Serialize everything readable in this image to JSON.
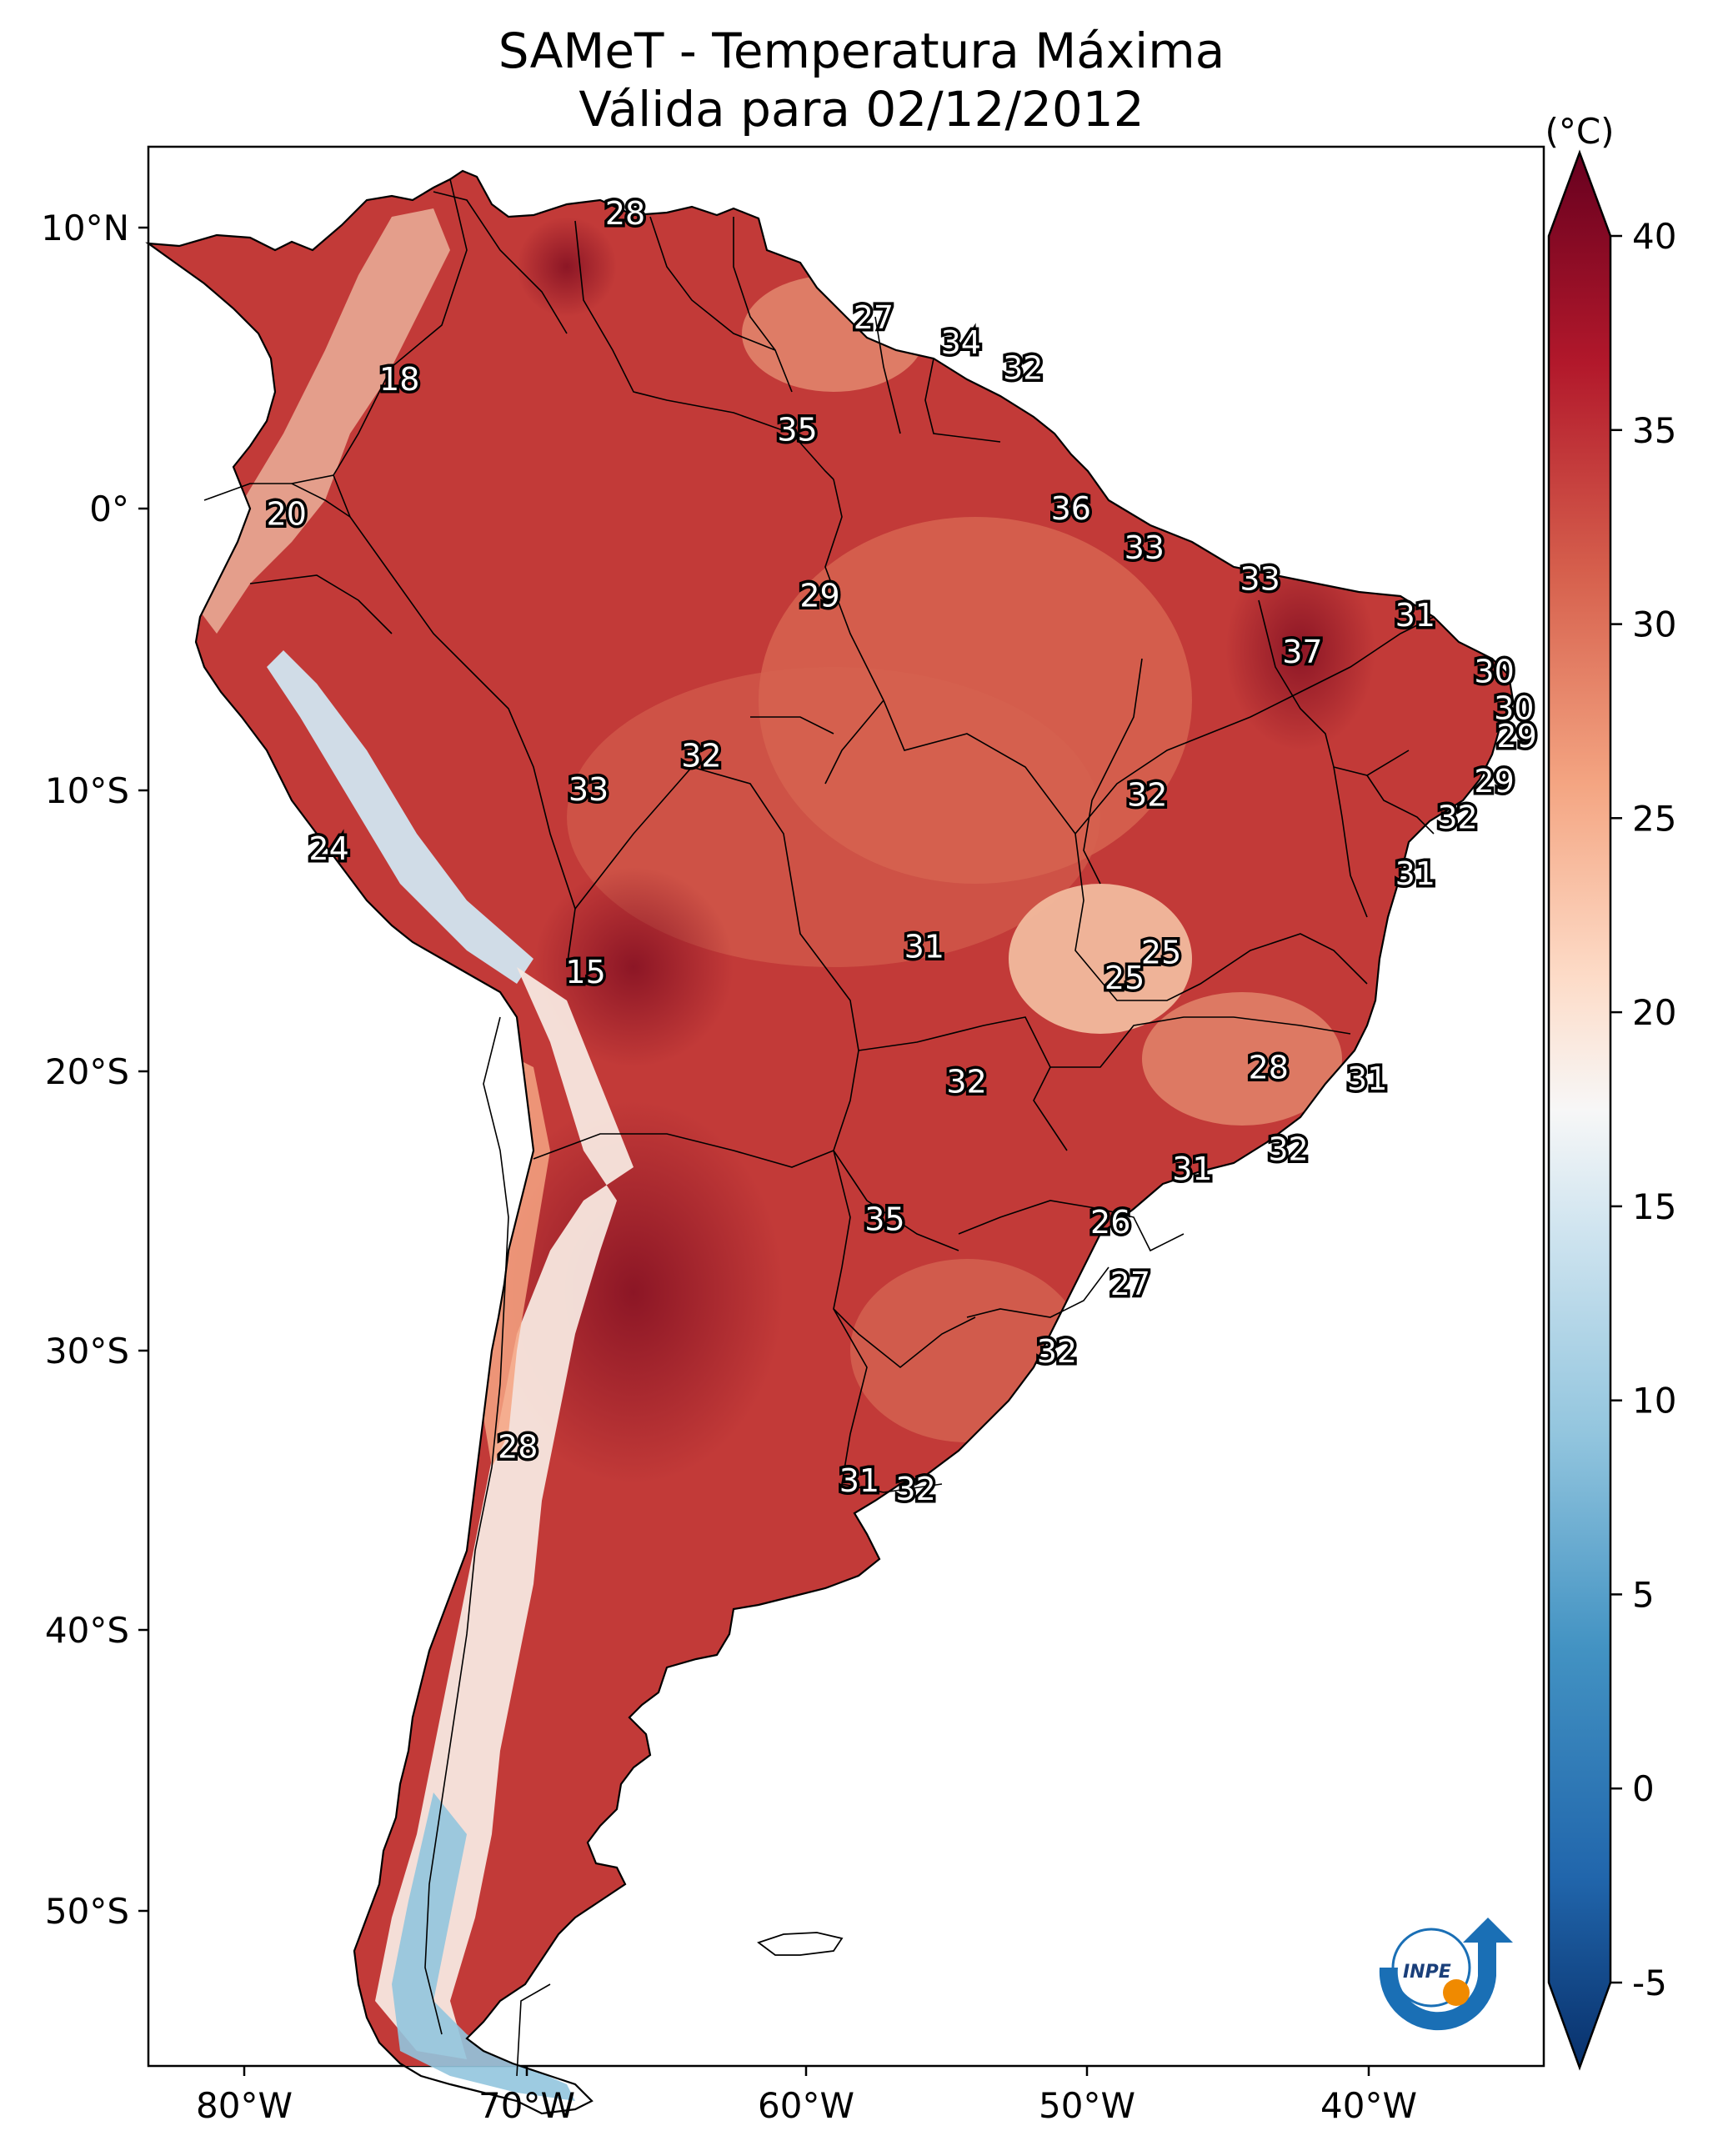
{
  "title": {
    "line1": "SAMeT - Temperatura Máxima",
    "line2": "Válida para 02/12/2012"
  },
  "axes": {
    "lon_ticks": [
      "80°W",
      "70°W",
      "60°W",
      "50°W",
      "40°W"
    ],
    "lat_ticks": [
      "10°N",
      "0°",
      "10°S",
      "20°S",
      "30°S",
      "40°S",
      "50°S"
    ]
  },
  "colorbar": {
    "unit": "(°C)",
    "ticks": [
      "40",
      "35",
      "30",
      "25",
      "20",
      "15",
      "10",
      "5",
      "0",
      "-5"
    ],
    "min": -5,
    "max": 40,
    "colormap": "RdBu_r",
    "colors": [
      "#08306b",
      "#2166ac",
      "#4393c3",
      "#92c5de",
      "#d1e5f0",
      "#f7f7f7",
      "#fddbc7",
      "#f4a582",
      "#d6604d",
      "#b2182b",
      "#67001f"
    ]
  },
  "map_labels": [
    {
      "value": "28",
      "lon": -66.5,
      "lat": 10.5
    },
    {
      "value": "18",
      "lon": -74.5,
      "lat": 4.6
    },
    {
      "value": "27",
      "lon": -57.7,
      "lat": 6.8
    },
    {
      "value": "34",
      "lon": -54.6,
      "lat": 5.9
    },
    {
      "value": "32",
      "lon": -52.4,
      "lat": 5.0
    },
    {
      "value": "35",
      "lon": -60.4,
      "lat": 2.8
    },
    {
      "value": "20",
      "lon": -78.5,
      "lat": -0.2
    },
    {
      "value": "36",
      "lon": -50.7,
      "lat": 0.0
    },
    {
      "value": "33",
      "lon": -48.1,
      "lat": -1.4
    },
    {
      "value": "29",
      "lon": -59.6,
      "lat": -3.1
    },
    {
      "value": "33",
      "lon": -44.0,
      "lat": -2.5
    },
    {
      "value": "31",
      "lon": -38.5,
      "lat": -3.8
    },
    {
      "value": "37",
      "lon": -42.5,
      "lat": -5.1
    },
    {
      "value": "30",
      "lon": -35.7,
      "lat": -5.8
    },
    {
      "value": "30",
      "lon": -35.0,
      "lat": -7.1
    },
    {
      "value": "29",
      "lon": -34.9,
      "lat": -8.1
    },
    {
      "value": "32",
      "lon": -63.8,
      "lat": -8.8
    },
    {
      "value": "33",
      "lon": -67.8,
      "lat": -10.0
    },
    {
      "value": "32",
      "lon": -48.0,
      "lat": -10.2
    },
    {
      "value": "29",
      "lon": -35.7,
      "lat": -9.7
    },
    {
      "value": "32",
      "lon": -37.0,
      "lat": -11.0
    },
    {
      "value": "24",
      "lon": -77.0,
      "lat": -12.1
    },
    {
      "value": "31",
      "lon": -38.5,
      "lat": -13.0
    },
    {
      "value": "31",
      "lon": -55.9,
      "lat": -15.6
    },
    {
      "value": "25",
      "lon": -47.5,
      "lat": -15.8
    },
    {
      "value": "25",
      "lon": -48.8,
      "lat": -16.7
    },
    {
      "value": "15",
      "lon": -67.9,
      "lat": -16.5
    },
    {
      "value": "28",
      "lon": -43.7,
      "lat": -19.9
    },
    {
      "value": "31",
      "lon": -40.2,
      "lat": -20.3
    },
    {
      "value": "32",
      "lon": -54.4,
      "lat": -20.4
    },
    {
      "value": "32",
      "lon": -43.0,
      "lat": -22.8
    },
    {
      "value": "31",
      "lon": -46.4,
      "lat": -23.5
    },
    {
      "value": "35",
      "lon": -57.3,
      "lat": -25.3
    },
    {
      "value": "26",
      "lon": -49.3,
      "lat": -25.4
    },
    {
      "value": "27",
      "lon": -48.6,
      "lat": -27.6
    },
    {
      "value": "32",
      "lon": -51.2,
      "lat": -30.0
    },
    {
      "value": "28",
      "lon": -70.3,
      "lat": -33.4
    },
    {
      "value": "31",
      "lon": -58.2,
      "lat": -34.6
    },
    {
      "value": "32",
      "lon": -56.2,
      "lat": -34.9
    }
  ],
  "logo": {
    "text": "INPE"
  }
}
